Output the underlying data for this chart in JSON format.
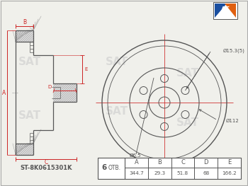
{
  "bg_color": "#f0f0eb",
  "line_color": "#555555",
  "dark_color": "#333333",
  "red_color": "#cc2222",
  "part_number": "ST-8K0615301K",
  "holes_count": "6",
  "otv_label": "ОТВ.",
  "table_headers": [
    "A",
    "B",
    "C",
    "D",
    "E"
  ],
  "table_values": [
    "344.7",
    "29.3",
    "51.8",
    "68",
    "166.2"
  ],
  "annotation_D15": "Ø15.3(5)",
  "annotation_D112": "Ø112",
  "annotation_D65": "Ø6.5",
  "logo_orange": "#e06010",
  "logo_blue": "#1a4fa0",
  "hatch_color": "#aaaaaa",
  "watermark_color": "#cccccc"
}
